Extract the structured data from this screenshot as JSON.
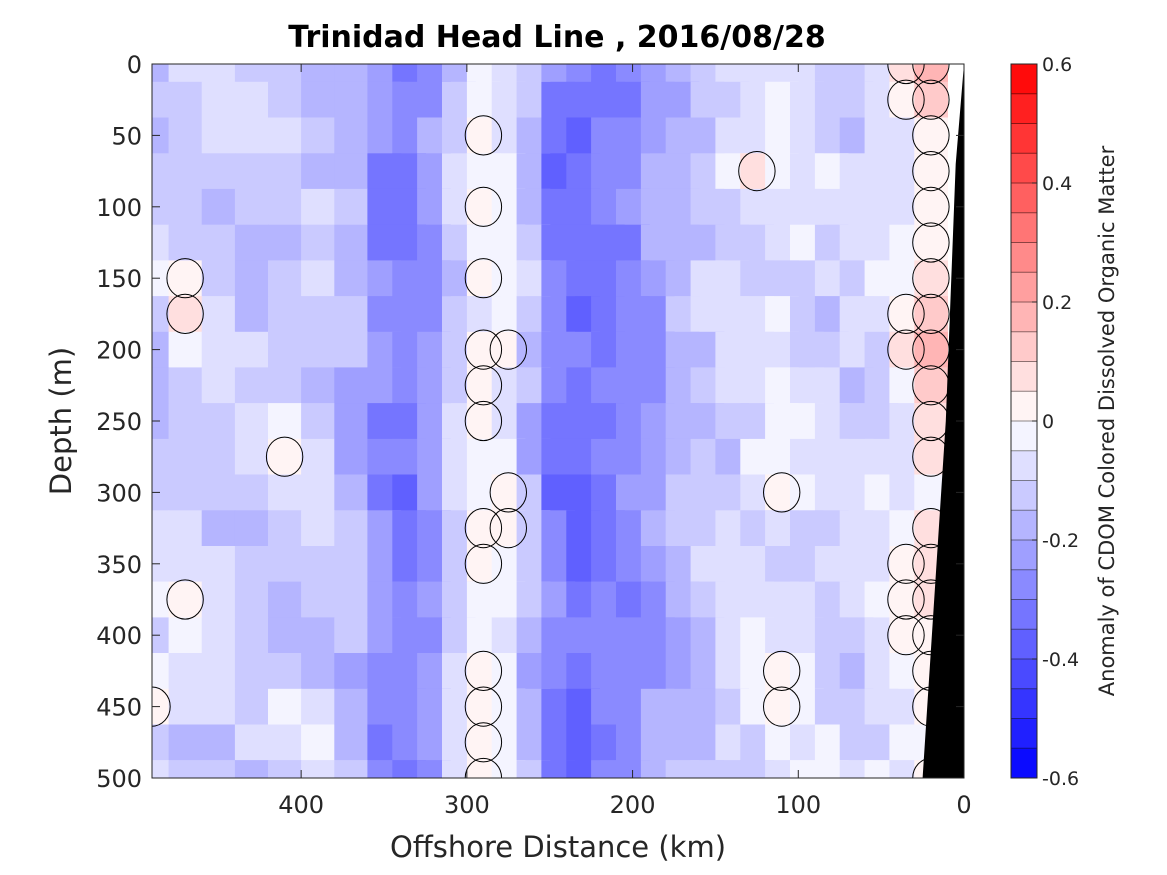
{
  "chart_data": {
    "type": "heatmap",
    "title": "Trinidad Head Line , 2016/08/28",
    "xlabel": "Offshore Distance (km)",
    "ylabel": "Depth (m)",
    "xlim": [
      490,
      0
    ],
    "ylim": [
      0,
      500
    ],
    "x_ticks": [
      400,
      300,
      200,
      100,
      0
    ],
    "y_ticks": [
      0,
      50,
      100,
      150,
      200,
      250,
      300,
      350,
      400,
      450,
      500
    ],
    "colorbar": {
      "label": "Anomaly of CDOM Colored Dissolved Organic Matter",
      "range": [
        -0.6,
        0.6
      ],
      "step": 0.05,
      "ticks": [
        -0.6,
        -0.4,
        -0.2,
        0,
        0.2,
        0.4,
        0.6
      ],
      "low_color": "#0000ff",
      "mid_color": "#ffffff",
      "high_color": "#ff0000"
    },
    "zero_contour": true,
    "bathymetry_color": "#000000",
    "bathymetry": [
      [
        0,
        0
      ],
      [
        5,
        70
      ],
      [
        11,
        250
      ],
      [
        25,
        500
      ]
    ],
    "x_columns": [
      490,
      470,
      450,
      430,
      410,
      390,
      370,
      350,
      335,
      320,
      305,
      290,
      275,
      260,
      245,
      230,
      215,
      200,
      185,
      170,
      155,
      140,
      125,
      110,
      95,
      80,
      65,
      50,
      35,
      20
    ],
    "depth_rows": [
      0,
      25,
      50,
      75,
      100,
      125,
      150,
      175,
      200,
      225,
      250,
      275,
      300,
      325,
      350,
      375,
      400,
      425,
      450,
      475,
      500
    ],
    "profile": [
      -0.11,
      -0.09,
      -0.12,
      -0.13,
      -0.12,
      -0.13,
      -0.17,
      -0.26,
      -0.31,
      -0.24,
      -0.1,
      -0.02,
      -0.04,
      -0.15,
      -0.3,
      -0.34,
      -0.3,
      -0.27,
      -0.22,
      -0.17,
      -0.14,
      -0.1,
      -0.08,
      -0.07,
      -0.08,
      -0.1,
      -0.1,
      -0.08,
      -0.03,
      0.05
    ],
    "anomalies": [
      {
        "x": 320,
        "depth": 20,
        "value": -0.28
      },
      {
        "x": 230,
        "depth": 40,
        "value": -0.36
      },
      {
        "x": 130,
        "depth": 80,
        "value": 0.08
      },
      {
        "x": 25,
        "depth": 10,
        "value": 0.22
      },
      {
        "x": 20,
        "depth": 190,
        "value": 0.2
      },
      {
        "x": 285,
        "depth": 210,
        "value": 0.07
      },
      {
        "x": 290,
        "depth": 440,
        "value": 0.08
      },
      {
        "x": 280,
        "depth": 330,
        "value": 0.06
      },
      {
        "x": 470,
        "depth": 170,
        "value": 0.1
      },
      {
        "x": 485,
        "depth": 440,
        "value": 0.1
      },
      {
        "x": 210,
        "depth": 260,
        "value": -0.33
      },
      {
        "x": 220,
        "depth": 280,
        "value": -0.3
      },
      {
        "x": 210,
        "depth": 400,
        "value": -0.3
      },
      {
        "x": 215,
        "depth": 470,
        "value": -0.33
      },
      {
        "x": 340,
        "depth": 420,
        "value": -0.3
      },
      {
        "x": 340,
        "depth": 490,
        "value": -0.3
      },
      {
        "x": 335,
        "depth": 460,
        "value": -0.28
      },
      {
        "x": 110,
        "depth": 290,
        "value": 0.06
      },
      {
        "x": 110,
        "depth": 440,
        "value": 0.06
      },
      {
        "x": 410,
        "depth": 270,
        "value": 0.06
      },
      {
        "x": 400,
        "depth": 460,
        "value": 0.07
      },
      {
        "x": 475,
        "depth": 380,
        "value": 0.06
      }
    ]
  }
}
